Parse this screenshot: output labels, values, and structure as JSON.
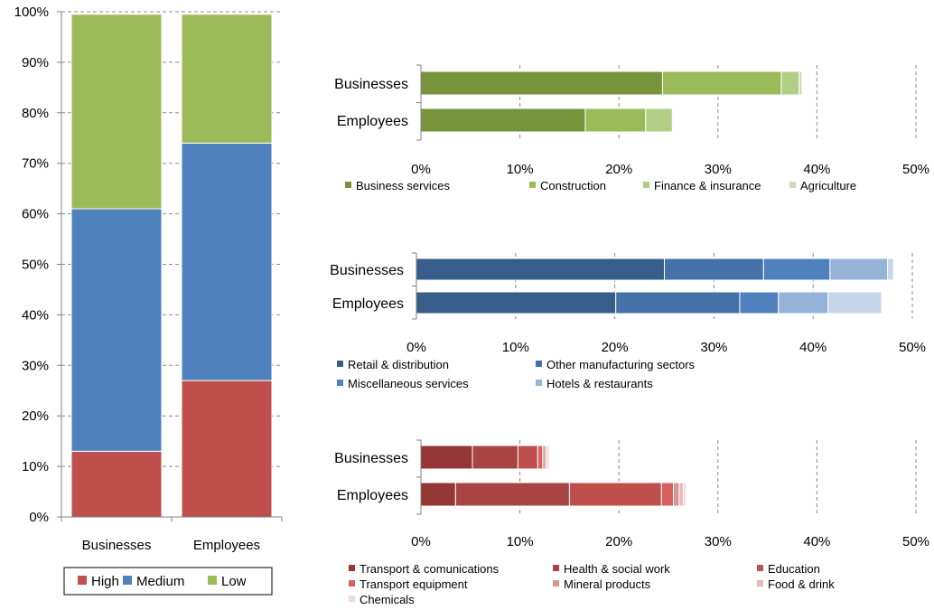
{
  "chart_data": [
    {
      "id": "overall",
      "type": "bar",
      "stacked": true,
      "orientation": "vertical",
      "categories": [
        "Businesses",
        "Employees"
      ],
      "series": [
        {
          "name": "High",
          "color": "#C0504D",
          "values": [
            13,
            27
          ]
        },
        {
          "name": "Medium",
          "color": "#4F81BD",
          "values": [
            48,
            47
          ]
        },
        {
          "name": "Low",
          "color": "#9BBB59",
          "values": [
            38.5,
            25.5
          ]
        }
      ],
      "ylim": [
        0,
        100
      ],
      "yticks": [
        "0%",
        "10%",
        "20%",
        "30%",
        "40%",
        "50%",
        "60%",
        "70%",
        "80%",
        "90%",
        "100%"
      ],
      "grid": true,
      "legend": "bottom"
    },
    {
      "id": "low",
      "type": "bar",
      "stacked": true,
      "orientation": "horizontal",
      "categories": [
        "Businesses",
        "Employees"
      ],
      "series": [
        {
          "name": "Business services",
          "color": "#77933C",
          "values": [
            24.4,
            16.6
          ]
        },
        {
          "name": "Construction",
          "color": "#9BBB59",
          "values": [
            12,
            6.1
          ]
        },
        {
          "name": "Finance & insurance",
          "color": "#B2CD86",
          "values": [
            1.8,
            2.7
          ]
        },
        {
          "name": "Agriculture",
          "color": "#CCDDB5",
          "values": [
            0.3,
            0.1
          ]
        }
      ],
      "xlim": [
        0,
        50
      ],
      "xticks": [
        "0%",
        "10%",
        "20%",
        "30%",
        "40%",
        "50%"
      ],
      "grid": true,
      "legend": "bottom"
    },
    {
      "id": "medium",
      "type": "bar",
      "stacked": true,
      "orientation": "horizontal",
      "categories": [
        "Businesses",
        "Employees"
      ],
      "series": [
        {
          "name": "Retail & distribution",
          "color": "#385D8A",
          "values": [
            25,
            20.1
          ]
        },
        {
          "name": "Other manufacturing sectors",
          "color": "#4472A8",
          "values": [
            10,
            12.5
          ]
        },
        {
          "name": "Miscellaneous services",
          "color": "#4F81BD",
          "values": [
            6.7,
            3.9
          ]
        },
        {
          "name": "Hotels & restaurants",
          "color": "#95B3D7",
          "values": [
            5.8,
            5
          ]
        },
        {
          "name": "",
          "color": "#C5D5EA",
          "values": [
            0.6,
            5.4
          ]
        }
      ],
      "xlim": [
        0,
        50
      ],
      "xticks": [
        "0%",
        "10%",
        "20%",
        "30%",
        "40%",
        "50%"
      ],
      "grid": true,
      "legend": "bottom"
    },
    {
      "id": "high",
      "type": "bar",
      "stacked": true,
      "orientation": "horizontal",
      "categories": [
        "Businesses",
        "Employees"
      ],
      "series": [
        {
          "name": "Transport & comunications",
          "color": "#943634",
          "values": [
            5.2,
            3.5
          ]
        },
        {
          "name": "Health & social work",
          "color": "#A84442",
          "values": [
            4.6,
            11.5
          ]
        },
        {
          "name": "Education",
          "color": "#C0504D",
          "values": [
            2,
            9.3
          ]
        },
        {
          "name": "Transport equipment",
          "color": "#D7615E",
          "values": [
            0.5,
            1.2
          ]
        },
        {
          "name": "Mineral products",
          "color": "#DA9694",
          "values": [
            0.3,
            0.6
          ]
        },
        {
          "name": "Food & drink",
          "color": "#E6B9B8",
          "values": [
            0.2,
            0.4
          ]
        },
        {
          "name": "Chemicals",
          "color": "#F2DCDB",
          "values": [
            0.2,
            0.3
          ]
        }
      ],
      "xlim": [
        0,
        50
      ],
      "xticks": [
        "0%",
        "10%",
        "20%",
        "30%",
        "40%",
        "50%"
      ],
      "grid": true,
      "legend": "bottom"
    }
  ]
}
